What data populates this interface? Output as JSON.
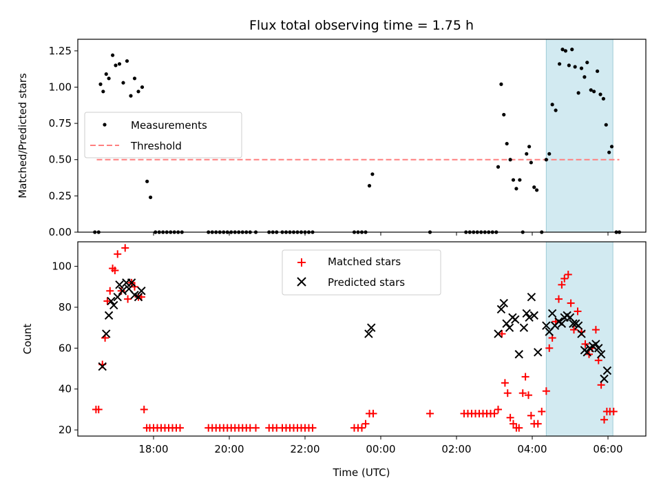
{
  "chart_data": [
    {
      "type": "scatter",
      "title": "Flux total observing time = 1.75 h",
      "ylabel": "Matched/Predicted stars",
      "xlabel": "",
      "x_range_hours": [
        16.0,
        31.0
      ],
      "ylim": [
        0,
        1.33
      ],
      "y_ticks": [
        "0.00",
        "0.25",
        "0.50",
        "0.75",
        "1.00",
        "1.25"
      ],
      "highlight_span_hours": [
        28.37,
        30.13
      ],
      "highlight_color": "#add8e6",
      "legend": {
        "placement": "center-left",
        "entries": [
          "Measurements",
          "Threshold"
        ]
      },
      "threshold": {
        "name": "Threshold",
        "y": 0.5,
        "x_range_hours": [
          16.5,
          30.3
        ],
        "color": "#ff7f7f"
      },
      "series": [
        {
          "name": "Measurements",
          "color": "#000000",
          "points": [
            [
              16.45,
              0
            ],
            [
              16.55,
              0
            ],
            [
              16.6,
              1.02
            ],
            [
              16.67,
              0.97
            ],
            [
              16.75,
              1.09
            ],
            [
              16.82,
              1.06
            ],
            [
              16.92,
              1.22
            ],
            [
              17.0,
              1.15
            ],
            [
              17.1,
              1.16
            ],
            [
              17.2,
              1.03
            ],
            [
              17.3,
              1.18
            ],
            [
              17.4,
              0.94
            ],
            [
              17.5,
              1.06
            ],
            [
              17.6,
              0.97
            ],
            [
              17.7,
              1.0
            ],
            [
              17.83,
              0.35
            ],
            [
              17.92,
              0.24
            ],
            [
              18.05,
              0
            ],
            [
              18.15,
              0
            ],
            [
              18.25,
              0
            ],
            [
              18.35,
              0
            ],
            [
              18.45,
              0
            ],
            [
              18.55,
              0
            ],
            [
              18.65,
              0
            ],
            [
              18.75,
              0
            ],
            [
              19.45,
              0
            ],
            [
              19.55,
              0
            ],
            [
              19.65,
              0
            ],
            [
              19.75,
              0
            ],
            [
              19.85,
              0
            ],
            [
              19.95,
              0
            ],
            [
              20.05,
              0
            ],
            [
              20.15,
              0
            ],
            [
              20.25,
              0
            ],
            [
              20.35,
              0
            ],
            [
              20.45,
              0
            ],
            [
              20.55,
              0
            ],
            [
              20.7,
              0
            ],
            [
              21.05,
              0
            ],
            [
              21.15,
              0
            ],
            [
              21.25,
              0
            ],
            [
              21.4,
              0
            ],
            [
              21.5,
              0
            ],
            [
              21.6,
              0
            ],
            [
              21.7,
              0
            ],
            [
              21.8,
              0
            ],
            [
              21.9,
              0
            ],
            [
              22.0,
              0
            ],
            [
              22.1,
              0
            ],
            [
              22.2,
              0
            ],
            [
              23.3,
              0
            ],
            [
              23.4,
              0
            ],
            [
              23.5,
              0
            ],
            [
              23.6,
              0
            ],
            [
              23.7,
              0.32
            ],
            [
              23.78,
              0.4
            ],
            [
              25.3,
              0
            ],
            [
              26.25,
              0
            ],
            [
              26.35,
              0
            ],
            [
              26.45,
              0
            ],
            [
              26.55,
              0
            ],
            [
              26.65,
              0
            ],
            [
              26.75,
              0
            ],
            [
              26.85,
              0
            ],
            [
              26.95,
              0
            ],
            [
              27.05,
              0
            ],
            [
              27.1,
              0.45
            ],
            [
              27.18,
              1.02
            ],
            [
              27.25,
              0.81
            ],
            [
              27.33,
              0.61
            ],
            [
              27.42,
              0.5
            ],
            [
              27.5,
              0.36
            ],
            [
              27.58,
              0.3
            ],
            [
              27.67,
              0.36
            ],
            [
              27.75,
              0
            ],
            [
              27.85,
              0.54
            ],
            [
              27.92,
              0.59
            ],
            [
              27.97,
              0.48
            ],
            [
              28.05,
              0.31
            ],
            [
              28.12,
              0.29
            ],
            [
              28.25,
              0
            ],
            [
              28.37,
              0.5
            ],
            [
              28.45,
              0.54
            ],
            [
              28.53,
              0.88
            ],
            [
              28.62,
              0.84
            ],
            [
              28.72,
              1.16
            ],
            [
              28.8,
              1.26
            ],
            [
              28.88,
              1.25
            ],
            [
              28.97,
              1.15
            ],
            [
              29.05,
              1.26
            ],
            [
              29.13,
              1.14
            ],
            [
              29.22,
              0.96
            ],
            [
              29.3,
              1.13
            ],
            [
              29.38,
              1.07
            ],
            [
              29.45,
              1.17
            ],
            [
              29.55,
              0.98
            ],
            [
              29.63,
              0.97
            ],
            [
              29.72,
              1.11
            ],
            [
              29.8,
              0.95
            ],
            [
              29.88,
              0.92
            ],
            [
              29.95,
              0.74
            ],
            [
              30.03,
              0.55
            ],
            [
              30.1,
              0.59
            ],
            [
              30.22,
              0
            ],
            [
              30.3,
              0
            ]
          ]
        }
      ]
    },
    {
      "type": "scatter",
      "title": "",
      "ylabel": "Count",
      "xlabel": "Time (UTC)",
      "x_range_hours": [
        16.0,
        31.0
      ],
      "ylim": [
        17,
        112
      ],
      "y_ticks": [
        "20",
        "40",
        "60",
        "80",
        "100"
      ],
      "x_ticks": [
        {
          "hour": 18,
          "label": "18:00"
        },
        {
          "hour": 20,
          "label": "20:00"
        },
        {
          "hour": 22,
          "label": "22:00"
        },
        {
          "hour": 24,
          "label": "00:00"
        },
        {
          "hour": 26,
          "label": "02:00"
        },
        {
          "hour": 28,
          "label": "04:00"
        },
        {
          "hour": 30,
          "label": "06:00"
        }
      ],
      "highlight_span_hours": [
        28.37,
        30.13
      ],
      "highlight_color": "#add8e6",
      "legend": {
        "placement": "upper-center",
        "entries": [
          "Matched stars",
          "Predicted stars"
        ]
      },
      "series": [
        {
          "name": "Matched stars",
          "marker": "plus",
          "color": "#ff0000",
          "points": [
            [
              16.48,
              30
            ],
            [
              16.55,
              30
            ],
            [
              16.65,
              52
            ],
            [
              16.72,
              65
            ],
            [
              16.78,
              83
            ],
            [
              16.85,
              88
            ],
            [
              16.92,
              99
            ],
            [
              16.98,
              98
            ],
            [
              17.05,
              106
            ],
            [
              17.15,
              88
            ],
            [
              17.25,
              109
            ],
            [
              17.32,
              84
            ],
            [
              17.42,
              92
            ],
            [
              17.5,
              90
            ],
            [
              17.6,
              85
            ],
            [
              17.68,
              85
            ],
            [
              17.75,
              30
            ],
            [
              17.82,
              21
            ],
            [
              17.9,
              21
            ],
            [
              18.0,
              21
            ],
            [
              18.1,
              21
            ],
            [
              18.2,
              21
            ],
            [
              18.3,
              21
            ],
            [
              18.4,
              21
            ],
            [
              18.5,
              21
            ],
            [
              18.6,
              21
            ],
            [
              18.7,
              21
            ],
            [
              19.45,
              21
            ],
            [
              19.55,
              21
            ],
            [
              19.65,
              21
            ],
            [
              19.75,
              21
            ],
            [
              19.85,
              21
            ],
            [
              19.95,
              21
            ],
            [
              20.05,
              21
            ],
            [
              20.15,
              21
            ],
            [
              20.25,
              21
            ],
            [
              20.35,
              21
            ],
            [
              20.45,
              21
            ],
            [
              20.55,
              21
            ],
            [
              20.7,
              21
            ],
            [
              21.05,
              21
            ],
            [
              21.15,
              21
            ],
            [
              21.25,
              21
            ],
            [
              21.4,
              21
            ],
            [
              21.5,
              21
            ],
            [
              21.6,
              21
            ],
            [
              21.7,
              21
            ],
            [
              21.8,
              21
            ],
            [
              21.9,
              21
            ],
            [
              22.0,
              21
            ],
            [
              22.1,
              21
            ],
            [
              22.2,
              21
            ],
            [
              23.3,
              21
            ],
            [
              23.4,
              21
            ],
            [
              23.5,
              21
            ],
            [
              23.6,
              23
            ],
            [
              23.7,
              28
            ],
            [
              23.8,
              28
            ],
            [
              25.3,
              28
            ],
            [
              26.2,
              28
            ],
            [
              26.3,
              28
            ],
            [
              26.4,
              28
            ],
            [
              26.5,
              28
            ],
            [
              26.6,
              28
            ],
            [
              26.7,
              28
            ],
            [
              26.8,
              28
            ],
            [
              26.9,
              28
            ],
            [
              27.0,
              28
            ],
            [
              27.1,
              30
            ],
            [
              27.2,
              67
            ],
            [
              27.28,
              43
            ],
            [
              27.35,
              38
            ],
            [
              27.42,
              26
            ],
            [
              27.5,
              23
            ],
            [
              27.58,
              21
            ],
            [
              27.65,
              21
            ],
            [
              27.75,
              38
            ],
            [
              27.82,
              46
            ],
            [
              27.9,
              37
            ],
            [
              27.97,
              27
            ],
            [
              28.05,
              23
            ],
            [
              28.15,
              23
            ],
            [
              28.25,
              29
            ],
            [
              28.37,
              39
            ],
            [
              28.45,
              60
            ],
            [
              28.53,
              65
            ],
            [
              28.62,
              73
            ],
            [
              28.7,
              84
            ],
            [
              28.78,
              91
            ],
            [
              28.85,
              94
            ],
            [
              28.95,
              96
            ],
            [
              29.02,
              82
            ],
            [
              29.1,
              69
            ],
            [
              29.2,
              78
            ],
            [
              29.3,
              68
            ],
            [
              29.4,
              62
            ],
            [
              29.5,
              57
            ],
            [
              29.58,
              60
            ],
            [
              29.68,
              69
            ],
            [
              29.75,
              54
            ],
            [
              29.82,
              42
            ],
            [
              29.9,
              25
            ],
            [
              29.97,
              29
            ],
            [
              30.05,
              29
            ],
            [
              30.15,
              29
            ]
          ]
        },
        {
          "name": "Predicted stars",
          "marker": "x",
          "color": "#000000",
          "points": [
            [
              16.65,
              51
            ],
            [
              16.75,
              67
            ],
            [
              16.82,
              76
            ],
            [
              16.88,
              83
            ],
            [
              16.95,
              81
            ],
            [
              17.05,
              85
            ],
            [
              17.1,
              91
            ],
            [
              17.18,
              88
            ],
            [
              17.28,
              92
            ],
            [
              17.35,
              89
            ],
            [
              17.42,
              92
            ],
            [
              17.5,
              86
            ],
            [
              17.6,
              85
            ],
            [
              17.68,
              88
            ],
            [
              23.68,
              67
            ],
            [
              23.75,
              70
            ],
            [
              27.1,
              67
            ],
            [
              27.18,
              79
            ],
            [
              27.25,
              82
            ],
            [
              27.32,
              72
            ],
            [
              27.4,
              70
            ],
            [
              27.48,
              75
            ],
            [
              27.55,
              74
            ],
            [
              27.65,
              57
            ],
            [
              27.78,
              70
            ],
            [
              27.85,
              77
            ],
            [
              27.92,
              75
            ],
            [
              27.98,
              85
            ],
            [
              28.05,
              76
            ],
            [
              28.15,
              58
            ],
            [
              28.37,
              71
            ],
            [
              28.45,
              68
            ],
            [
              28.53,
              77
            ],
            [
              28.6,
              71
            ],
            [
              28.7,
              73
            ],
            [
              28.78,
              72
            ],
            [
              28.85,
              75
            ],
            [
              28.92,
              76
            ],
            [
              29.0,
              75
            ],
            [
              29.08,
              72
            ],
            [
              29.15,
              72
            ],
            [
              29.22,
              71
            ],
            [
              29.3,
              67
            ],
            [
              29.38,
              59
            ],
            [
              29.45,
              58
            ],
            [
              29.52,
              60
            ],
            [
              29.6,
              61
            ],
            [
              29.68,
              62
            ],
            [
              29.75,
              60
            ],
            [
              29.82,
              57
            ],
            [
              29.9,
              45
            ],
            [
              29.98,
              49
            ]
          ]
        }
      ]
    }
  ]
}
